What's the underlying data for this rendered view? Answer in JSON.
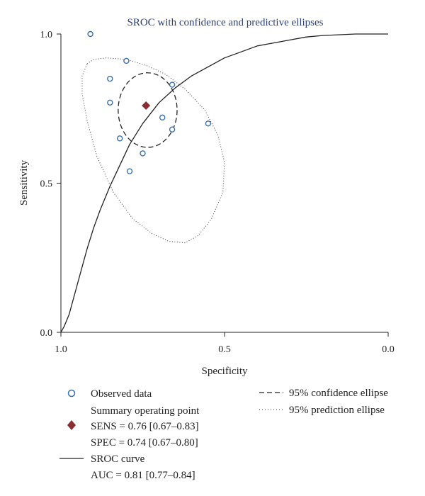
{
  "chart_data": {
    "type": "scatter",
    "title": "SROC with confidence and predictive ellipses",
    "xlabel": "Specificity",
    "ylabel": "Sensitivity",
    "x_axis_reversed": true,
    "xlim": [
      1.0,
      0.0
    ],
    "ylim": [
      0.0,
      1.0
    ],
    "x_ticks": [
      "1.0",
      "0.5",
      "0.0"
    ],
    "x_tick_values": [
      1.0,
      0.5,
      0.0
    ],
    "y_ticks": [
      "0.0",
      "0.5",
      "1.0"
    ],
    "y_tick_values": [
      0.0,
      0.5,
      1.0
    ],
    "grid": false,
    "colors": {
      "observed": "#3b6fa8",
      "summary": "#8b2e33",
      "title": "#2a3f7a",
      "line": "#222222"
    },
    "observed_data": {
      "name": "Observed data",
      "points": [
        {
          "x": 0.91,
          "y": 1.0
        },
        {
          "x": 0.8,
          "y": 0.91
        },
        {
          "x": 0.85,
          "y": 0.85
        },
        {
          "x": 0.66,
          "y": 0.83
        },
        {
          "x": 0.85,
          "y": 0.77
        },
        {
          "x": 0.69,
          "y": 0.72
        },
        {
          "x": 0.55,
          "y": 0.7
        },
        {
          "x": 0.66,
          "y": 0.68
        },
        {
          "x": 0.82,
          "y": 0.65
        },
        {
          "x": 0.75,
          "y": 0.6
        },
        {
          "x": 0.79,
          "y": 0.54
        }
      ]
    },
    "summary_point": {
      "name": "Summary operating point",
      "sens_label": "SENS = 0.76 [0.67–0.83]",
      "spec_label": "SPEC = 0.74 [0.67–0.80]",
      "sens": 0.76,
      "spec": 0.74
    },
    "sroc_curve": {
      "name": "SROC curve",
      "auc_label": "AUC = 0.81 [0.77–0.84]",
      "points": [
        [
          1.0,
          0.0
        ],
        [
          0.99,
          0.02
        ],
        [
          0.975,
          0.06
        ],
        [
          0.96,
          0.12
        ],
        [
          0.94,
          0.2
        ],
        [
          0.92,
          0.28
        ],
        [
          0.9,
          0.35
        ],
        [
          0.88,
          0.41
        ],
        [
          0.85,
          0.49
        ],
        [
          0.82,
          0.56
        ],
        [
          0.79,
          0.63
        ],
        [
          0.75,
          0.7
        ],
        [
          0.7,
          0.77
        ],
        [
          0.65,
          0.82
        ],
        [
          0.6,
          0.86
        ],
        [
          0.55,
          0.89
        ],
        [
          0.5,
          0.92
        ],
        [
          0.45,
          0.94
        ],
        [
          0.4,
          0.96
        ],
        [
          0.35,
          0.97
        ],
        [
          0.3,
          0.98
        ],
        [
          0.25,
          0.99
        ],
        [
          0.2,
          0.995
        ],
        [
          0.1,
          1.0
        ],
        [
          0.0,
          1.0
        ]
      ]
    },
    "confidence_ellipse": {
      "name": "95% confidence ellipse",
      "center": {
        "x": 0.735,
        "y": 0.745
      },
      "rx": 0.09,
      "ry": 0.125
    },
    "prediction_ellipse": {
      "name": "95% prediction ellipse",
      "points": [
        [
          0.92,
          0.9
        ],
        [
          0.9,
          0.915
        ],
        [
          0.86,
          0.92
        ],
        [
          0.8,
          0.915
        ],
        [
          0.74,
          0.895
        ],
        [
          0.68,
          0.865
        ],
        [
          0.62,
          0.815
        ],
        [
          0.56,
          0.745
        ],
        [
          0.52,
          0.66
        ],
        [
          0.5,
          0.57
        ],
        [
          0.505,
          0.47
        ],
        [
          0.54,
          0.38
        ],
        [
          0.58,
          0.325
        ],
        [
          0.62,
          0.3
        ],
        [
          0.67,
          0.305
        ],
        [
          0.72,
          0.33
        ],
        [
          0.78,
          0.38
        ],
        [
          0.84,
          0.47
        ],
        [
          0.89,
          0.59
        ],
        [
          0.92,
          0.71
        ],
        [
          0.935,
          0.8
        ],
        [
          0.935,
          0.86
        ],
        [
          0.92,
          0.9
        ]
      ]
    },
    "legend": {
      "placement": "bottom",
      "observed_label": "Observed data",
      "summary_label": "Summary operating point",
      "sens_label": "SENS = 0.76 [0.67–0.83]",
      "spec_label": "SPEC = 0.74 [0.67–0.80]",
      "sroc_label": "SROC curve",
      "auc_label": "AUC = 0.81 [0.77–0.84]",
      "confidence_label": "95% confidence ellipse",
      "prediction_label": "95% prediction ellipse"
    }
  }
}
